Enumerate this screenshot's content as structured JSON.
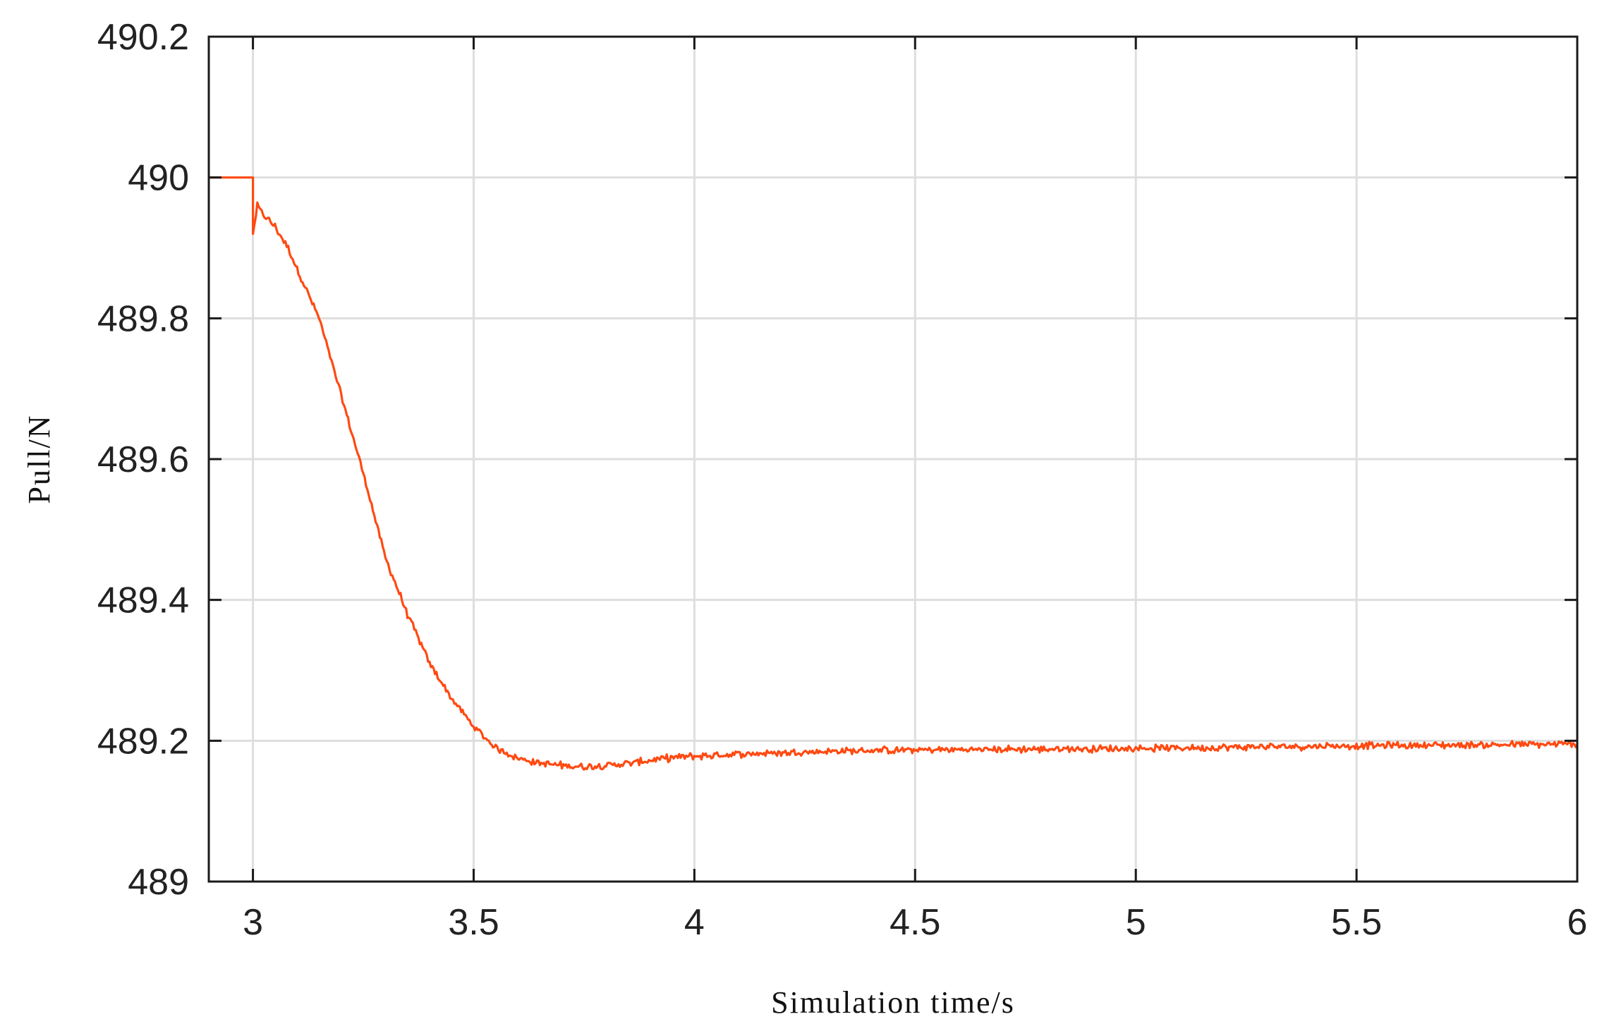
{
  "chart_data": {
    "type": "line",
    "title": "",
    "xlabel": "Simulation time/s",
    "ylabel": "Pull/N",
    "xlim": [
      2.9,
      6.0
    ],
    "ylim": [
      489.0,
      490.2
    ],
    "xticks": [
      "3",
      "3.5",
      "4",
      "4.5",
      "5",
      "5.5",
      "6"
    ],
    "yticks": [
      "489",
      "489.2",
      "489.4",
      "489.6",
      "489.8",
      "490",
      "490.2"
    ],
    "grid": true,
    "legend": "none",
    "line_color": "#ff4a12",
    "series": [
      {
        "color": "#ff4a12",
        "x": [
          2.9,
          2.95,
          3.0,
          3.0,
          3.01,
          3.02,
          3.05,
          3.08,
          3.1,
          3.15,
          3.2,
          3.25,
          3.3,
          3.35,
          3.4,
          3.45,
          3.5,
          3.55,
          3.6,
          3.65,
          3.7,
          3.75,
          3.8,
          3.85,
          3.9,
          3.95,
          4.0,
          4.1,
          4.2,
          4.3,
          4.5,
          4.75,
          5.0,
          5.25,
          5.5,
          5.75,
          6.0
        ],
        "y": [
          490.0,
          490.0,
          490.0,
          489.92,
          489.96,
          489.95,
          489.93,
          489.9,
          489.87,
          489.8,
          489.69,
          489.58,
          489.46,
          489.38,
          489.31,
          489.26,
          489.22,
          489.19,
          489.175,
          489.168,
          489.165,
          489.163,
          489.165,
          489.168,
          489.172,
          489.176,
          489.178,
          489.181,
          489.183,
          489.185,
          489.187,
          489.188,
          489.189,
          489.191,
          489.193,
          489.194,
          489.195
        ]
      }
    ],
    "noise_amplitude": 0.004
  }
}
